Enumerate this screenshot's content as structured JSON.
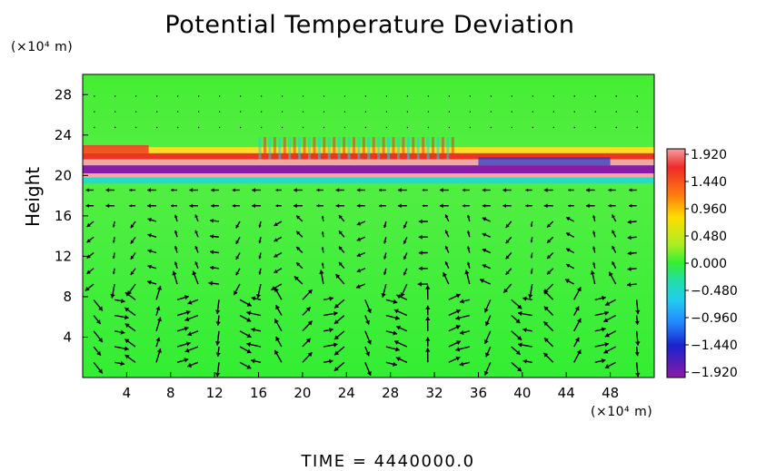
{
  "chart_data": {
    "type": "heatmap",
    "title": "Potential Temperature Deviation",
    "xlabel": "",
    "ylabel": "Height",
    "x_unit": "(×10⁴ m)",
    "y_unit": "(×10⁴ m)",
    "x_ticks": [
      "4",
      "8",
      "12",
      "16",
      "20",
      "24",
      "28",
      "32",
      "36",
      "40",
      "44",
      "48"
    ],
    "y_ticks": [
      "4",
      "8",
      "12",
      "16",
      "20",
      "24",
      "28"
    ],
    "xlim": [
      0,
      52
    ],
    "ylim": [
      0,
      30
    ],
    "colorbar": {
      "ticks": [
        "1.920",
        "1.440",
        "0.960",
        "0.480",
        "0.000",
        "−0.480",
        "−0.960",
        "−1.440",
        "−1.920"
      ],
      "range": [
        -1.92,
        1.92
      ]
    },
    "overlay": "wind vector arrows",
    "footer": "TIME  =  4440000.0"
  },
  "colors": {
    "background_field": "#33ee33",
    "band_dark": "#8a1aa8",
    "band_light": "#f0a8a0",
    "cyan_band": "#22ddcc",
    "arrows": "#000000"
  }
}
